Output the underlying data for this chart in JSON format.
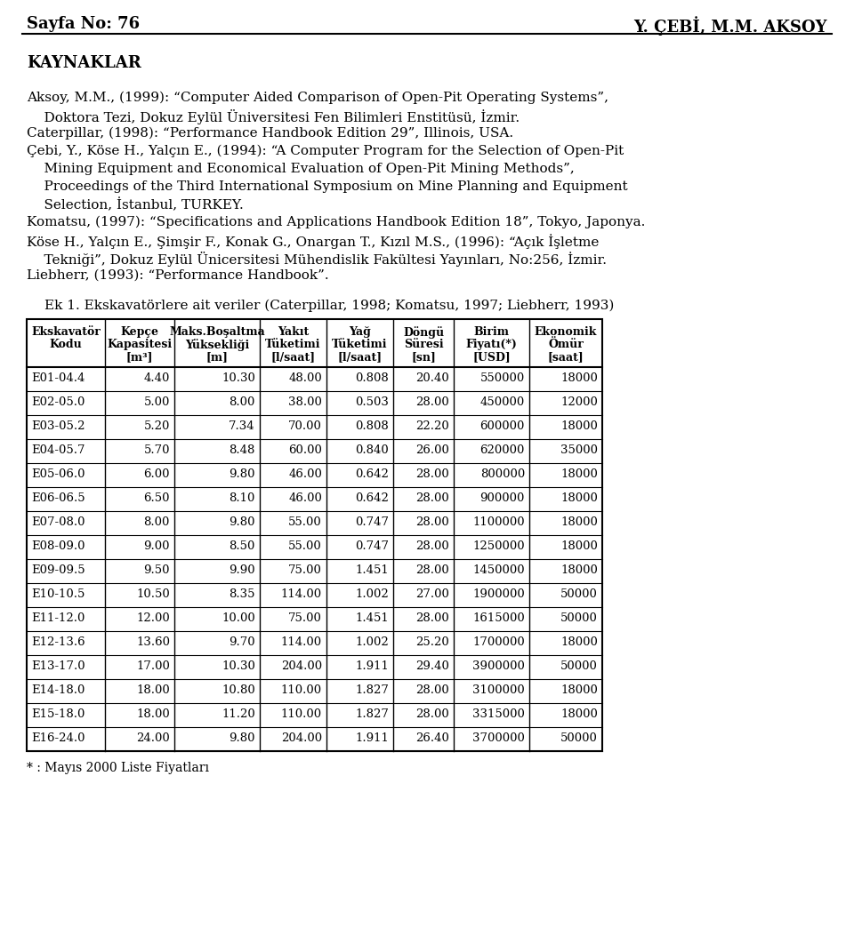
{
  "page_header_left": "Sayfa No: 76",
  "page_header_right": "Y. ÇEBİ, M.M. AKSOY",
  "section_title": "KAYNAKLAR",
  "ref_lines": [
    [
      "Aksoy, M.M., (1999): “Computer Aided Comparison of Open-Pit Operating Systems”,",
      0
    ],
    [
      "    Doktora Tezi, Dokuz Eylül Üniversitesi Fen Bilimleri Enstitüsü, İzmir.",
      0
    ],
    [
      "Caterpillar, (1998): “Performance Handbook Edition 29”, Illinois, USA.",
      0
    ],
    [
      "Çebi, Y., Köse H., Yalçın E., (1994): “A Computer Program for the Selection of Open-Pit",
      0
    ],
    [
      "    Mining Equipment and Economical Evaluation of Open-Pit Mining Methods”,",
      0
    ],
    [
      "    Proceedings of the Third International Symposium on Mine Planning and Equipment",
      0
    ],
    [
      "    Selection, İstanbul, TURKEY.",
      0
    ],
    [
      "Komatsu, (1997): “Specifications and Applications Handbook Edition 18”, Tokyo, Japonya.",
      0
    ],
    [
      "Köse H., Yalçın E., Şimşir F., Konak G., Onargan T., Kızıl M.S., (1996): “Açık İşletme",
      0
    ],
    [
      "    Tekniği”, Dokuz Eylül Ünicersitesi Mühendislik Fakültesi Yayınları, No:256, İzmir.",
      0
    ],
    [
      "Liebherr, (1993): “Performance Handbook”.",
      0
    ]
  ],
  "table_caption": "Ek 1. Ekskavatörlere ait veriler (Caterpillar, 1998; Komatsu, 1997; Liebherr, 1993)",
  "col_headers_line1": [
    "Ekskavatör",
    "Kepçe",
    "Maks.Boşaltma",
    "Yakıt",
    "Yağ",
    "Döngü",
    "Birim",
    "Ekonomik"
  ],
  "col_headers_line2": [
    "Kodu",
    "Kapasitesi",
    "Yüksekliği",
    "Tüketimi",
    "Tüketimi",
    "Süresi",
    "Fiyatı(*)",
    "Ömür"
  ],
  "col_headers_line3": [
    "",
    "[m³]",
    "[m]",
    "[l/saat]",
    "[l/saat]",
    "[sn]",
    "[USD]",
    "[saat]"
  ],
  "table_data": [
    [
      "E01-04.4",
      "4.40",
      "10.30",
      "48.00",
      "0.808",
      "20.40",
      "550000",
      "18000"
    ],
    [
      "E02-05.0",
      "5.00",
      "8.00",
      "38.00",
      "0.503",
      "28.00",
      "450000",
      "12000"
    ],
    [
      "E03-05.2",
      "5.20",
      "7.34",
      "70.00",
      "0.808",
      "22.20",
      "600000",
      "18000"
    ],
    [
      "E04-05.7",
      "5.70",
      "8.48",
      "60.00",
      "0.840",
      "26.00",
      "620000",
      "35000"
    ],
    [
      "E05-06.0",
      "6.00",
      "9.80",
      "46.00",
      "0.642",
      "28.00",
      "800000",
      "18000"
    ],
    [
      "E06-06.5",
      "6.50",
      "8.10",
      "46.00",
      "0.642",
      "28.00",
      "900000",
      "18000"
    ],
    [
      "E07-08.0",
      "8.00",
      "9.80",
      "55.00",
      "0.747",
      "28.00",
      "1100000",
      "18000"
    ],
    [
      "E08-09.0",
      "9.00",
      "8.50",
      "55.00",
      "0.747",
      "28.00",
      "1250000",
      "18000"
    ],
    [
      "E09-09.5",
      "9.50",
      "9.90",
      "75.00",
      "1.451",
      "28.00",
      "1450000",
      "18000"
    ],
    [
      "E10-10.5",
      "10.50",
      "8.35",
      "114.00",
      "1.002",
      "27.00",
      "1900000",
      "50000"
    ],
    [
      "E11-12.0",
      "12.00",
      "10.00",
      "75.00",
      "1.451",
      "28.00",
      "1615000",
      "50000"
    ],
    [
      "E12-13.6",
      "13.60",
      "9.70",
      "114.00",
      "1.002",
      "25.20",
      "1700000",
      "18000"
    ],
    [
      "E13-17.0",
      "17.00",
      "10.30",
      "204.00",
      "1.911",
      "29.40",
      "3900000",
      "50000"
    ],
    [
      "E14-18.0",
      "18.00",
      "10.80",
      "110.00",
      "1.827",
      "28.00",
      "3100000",
      "18000"
    ],
    [
      "E15-18.0",
      "18.00",
      "11.20",
      "110.00",
      "1.827",
      "28.00",
      "3315000",
      "18000"
    ],
    [
      "E16-24.0",
      "24.00",
      "9.80",
      "204.00",
      "1.911",
      "26.40",
      "3700000",
      "50000"
    ]
  ],
  "table_footnote": "* : Mayıs 2000 Liste Fiyatları",
  "col_alignments": [
    "left",
    "right",
    "right",
    "right",
    "right",
    "right",
    "right",
    "right"
  ],
  "bg_color": "#ffffff"
}
